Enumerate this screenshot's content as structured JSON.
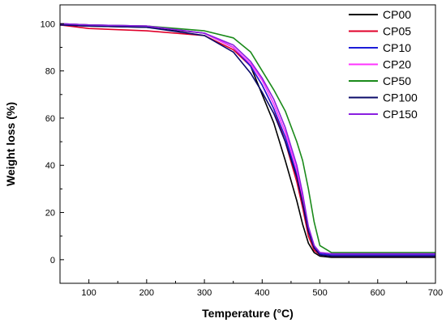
{
  "chart_data": {
    "type": "line",
    "title": "",
    "xlabel": "Temperature (°C)",
    "ylabel": "Weight loss (%)",
    "xlim": [
      50,
      700
    ],
    "ylim": [
      -10,
      108
    ],
    "x_ticks": [
      100,
      200,
      300,
      400,
      500,
      600,
      700
    ],
    "y_ticks": [
      0,
      20,
      40,
      60,
      80,
      100
    ],
    "grid": false,
    "legend_position": "top-right",
    "series": [
      {
        "name": "CP00",
        "color": "#000000",
        "x": [
          50,
          100,
          200,
          300,
          350,
          380,
          400,
          420,
          440,
          460,
          470,
          480,
          490,
          500,
          520,
          700
        ],
        "y": [
          99.5,
          99,
          98.5,
          96,
          90,
          82,
          70,
          58,
          42,
          25,
          15,
          7,
          3,
          1.5,
          1,
          1
        ]
      },
      {
        "name": "CP05",
        "color": "#e0002a",
        "x": [
          50,
          100,
          200,
          300,
          350,
          380,
          400,
          420,
          440,
          460,
          470,
          480,
          490,
          500,
          520,
          700
        ],
        "y": [
          99.5,
          98,
          97,
          95,
          89,
          82,
          74,
          64,
          50,
          33,
          22,
          10,
          4,
          2,
          1.5,
          1.5
        ]
      },
      {
        "name": "CP10",
        "color": "#1c1cd8",
        "x": [
          50,
          100,
          200,
          300,
          350,
          380,
          400,
          420,
          440,
          460,
          470,
          480,
          490,
          500,
          520,
          700
        ],
        "y": [
          100,
          99.5,
          99,
          96,
          90,
          82,
          74,
          64,
          52,
          36,
          24,
          12,
          5,
          2.5,
          2,
          2
        ]
      },
      {
        "name": "CP20",
        "color": "#ff33ff",
        "x": [
          50,
          100,
          200,
          300,
          350,
          380,
          400,
          420,
          440,
          460,
          470,
          480,
          490,
          500,
          520,
          700
        ],
        "y": [
          100,
          99.5,
          99,
          96,
          90,
          83,
          76,
          66,
          54,
          38,
          26,
          14,
          6,
          3,
          2.5,
          2.5
        ]
      },
      {
        "name": "CP50",
        "color": "#1a8a1a",
        "x": [
          50,
          100,
          200,
          300,
          350,
          380,
          400,
          420,
          440,
          460,
          470,
          480,
          490,
          500,
          520,
          700
        ],
        "y": [
          100,
          99.5,
          99,
          97,
          94,
          88,
          80,
          72,
          63,
          50,
          42,
          30,
          16,
          6,
          3,
          3
        ]
      },
      {
        "name": "CP100",
        "color": "#0a0a6a",
        "x": [
          50,
          100,
          200,
          300,
          350,
          380,
          400,
          420,
          440,
          460,
          470,
          480,
          490,
          500,
          520,
          700
        ],
        "y": [
          99.5,
          99,
          98.5,
          95,
          88,
          79,
          71,
          62,
          50,
          35,
          24,
          12,
          5,
          2,
          1.5,
          1.5
        ]
      },
      {
        "name": "CP150",
        "color": "#8a1fe0",
        "x": [
          50,
          100,
          200,
          300,
          350,
          380,
          400,
          420,
          440,
          460,
          470,
          480,
          490,
          500,
          520,
          700
        ],
        "y": [
          100,
          99.5,
          99,
          96,
          91,
          84,
          77,
          68,
          56,
          40,
          28,
          14,
          6,
          3,
          2.5,
          2.5
        ]
      }
    ]
  }
}
